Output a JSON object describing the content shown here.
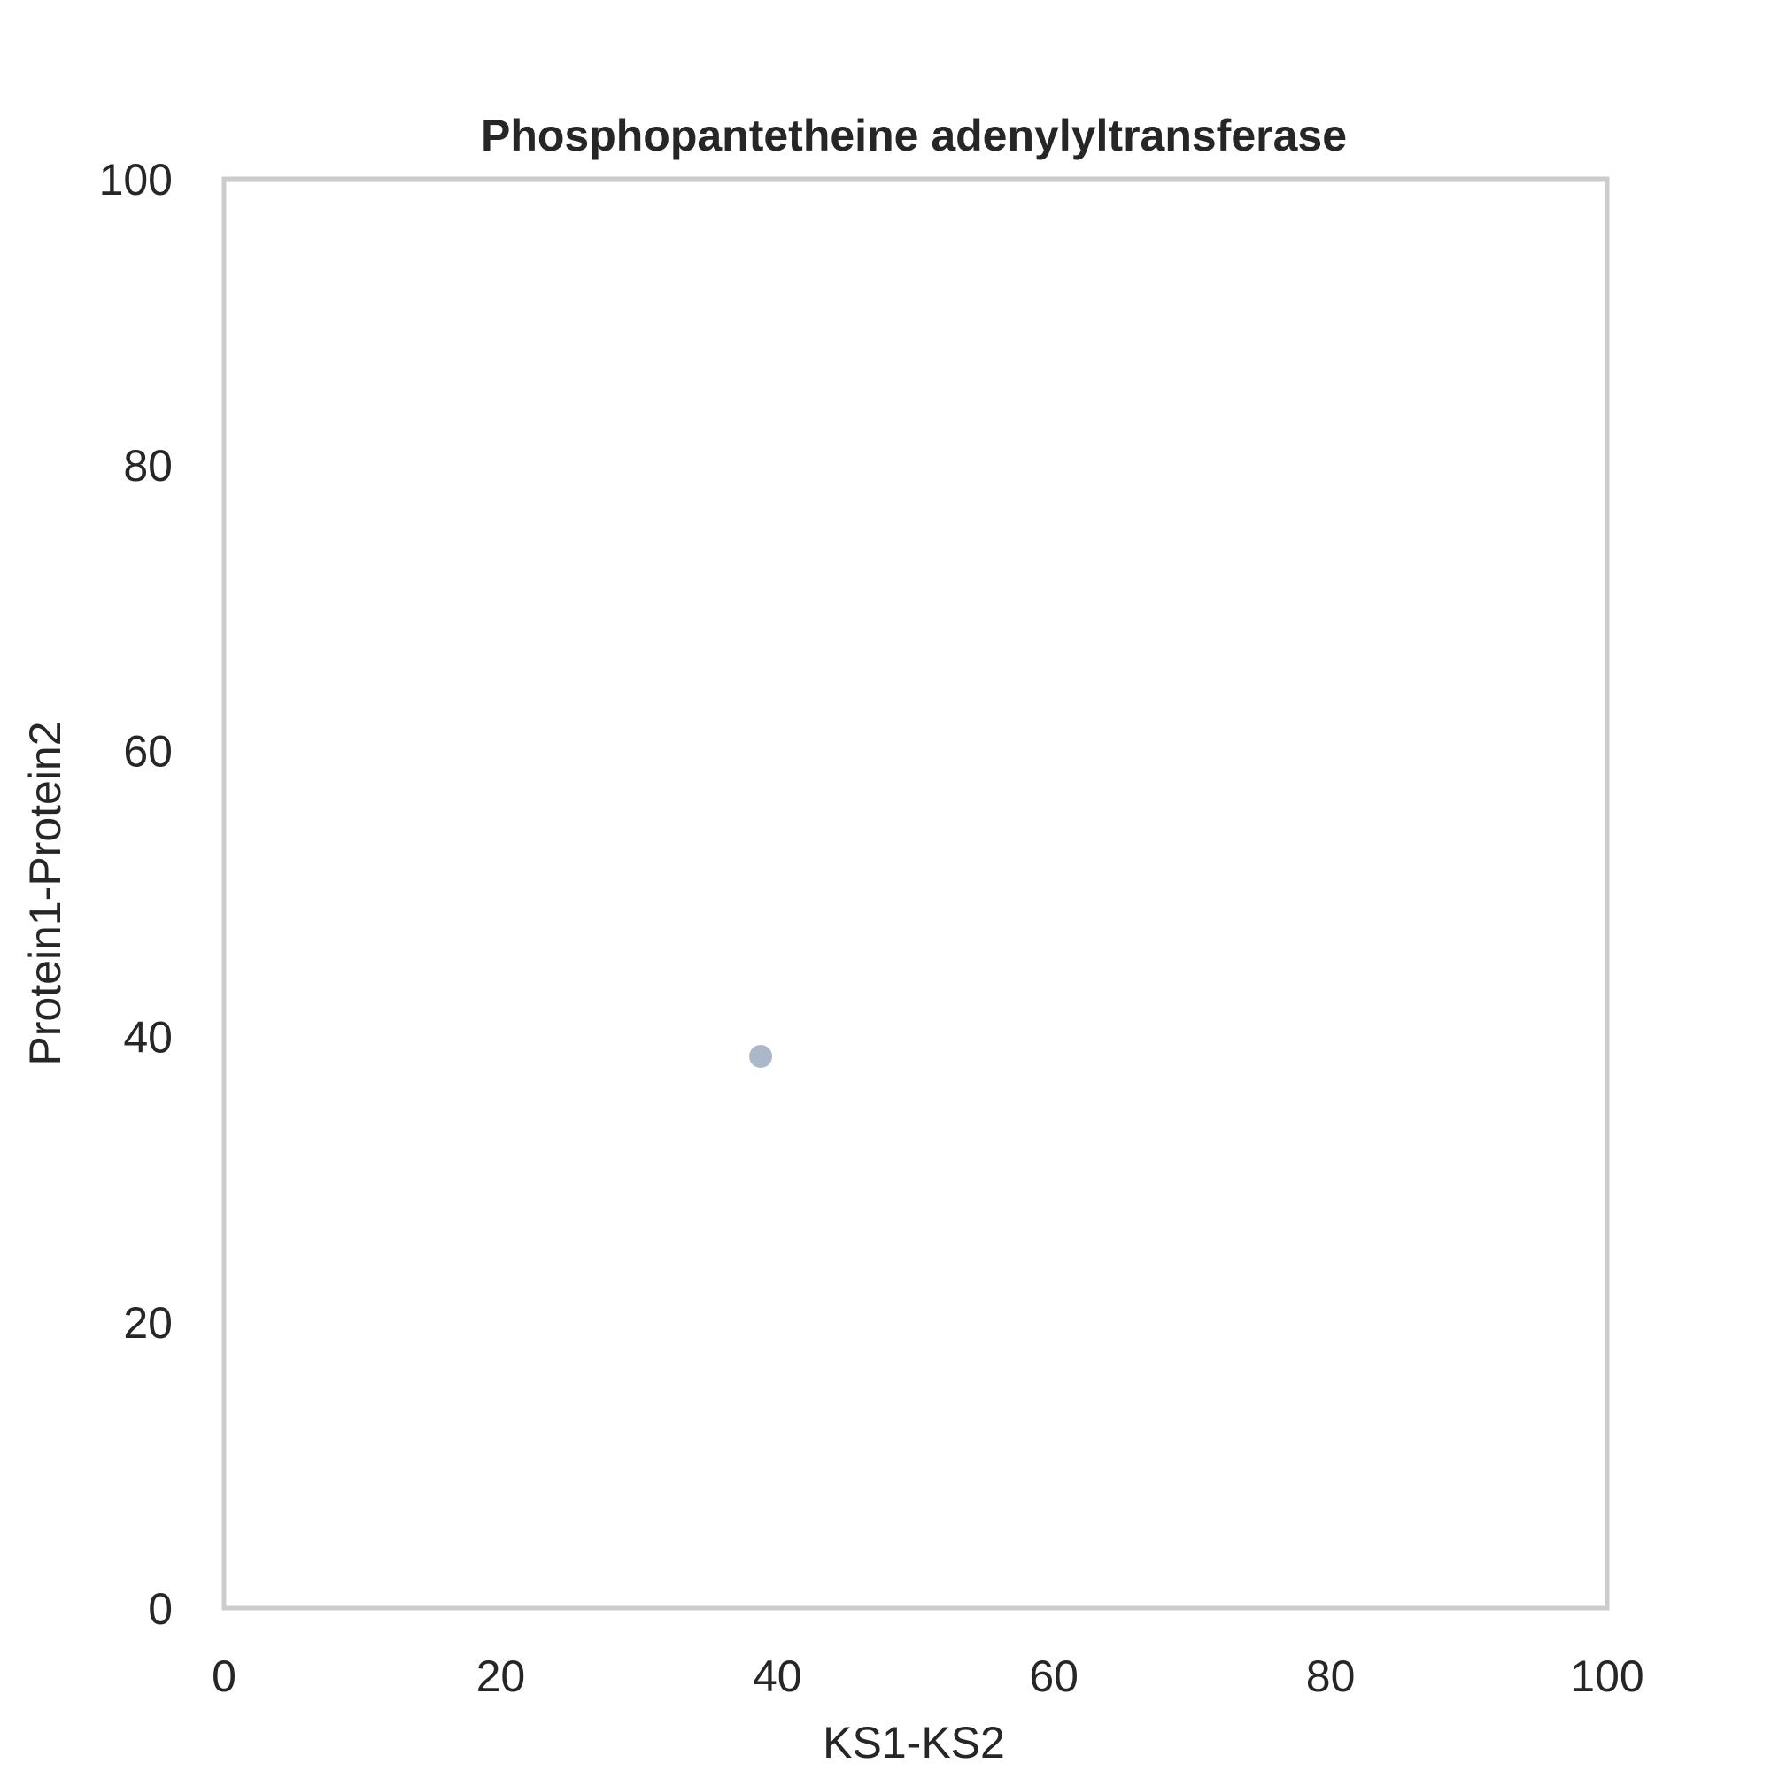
{
  "chart_data": {
    "type": "scatter",
    "title": "Phosphopantetheine adenylyltransferase",
    "xlabel": "KS1-KS2",
    "ylabel": "Protein1-Protein2",
    "xlim": [
      0,
      100
    ],
    "ylim": [
      0,
      100
    ],
    "xticks": [
      "0",
      "20",
      "40",
      "60",
      "80",
      "100"
    ],
    "yticks": [
      "0",
      "20",
      "40",
      "60",
      "80",
      "100"
    ],
    "grid": false,
    "points": [
      {
        "x": 38.8,
        "y": 38.6
      }
    ],
    "colors": {
      "marker": "#8da0b7",
      "frame": "#cccccc",
      "text": "#262626"
    }
  }
}
